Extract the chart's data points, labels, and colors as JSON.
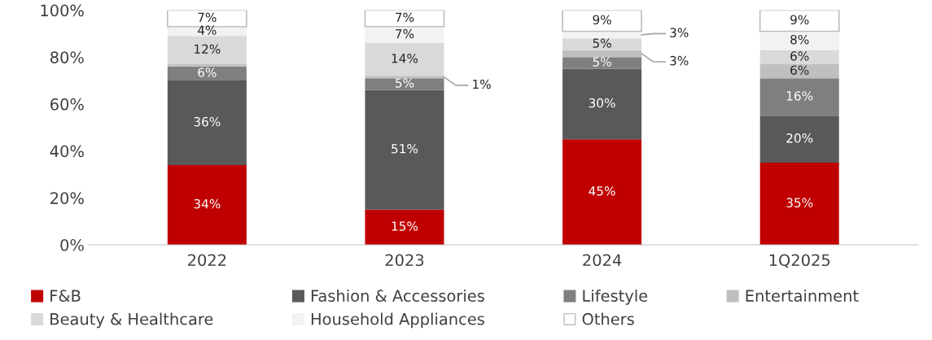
{
  "chart_data": {
    "type": "bar",
    "stacked": true,
    "categories": [
      "2022",
      "2023",
      "2024",
      "1Q2025"
    ],
    "series": [
      {
        "name": "F&B",
        "color": "#c00000",
        "values": [
          34,
          15,
          45,
          35
        ],
        "value_labels": [
          "34%",
          "15%",
          "45%",
          "35%"
        ]
      },
      {
        "name": "Fashion & Accessories",
        "color": "#595959",
        "values": [
          36,
          51,
          30,
          20
        ],
        "value_labels": [
          "36%",
          "51%",
          "30%",
          "20%"
        ]
      },
      {
        "name": "Lifestyle",
        "color": "#7f7f7f",
        "values": [
          6,
          5,
          5,
          16
        ],
        "value_labels": [
          "6%",
          "5%",
          "5%",
          "16%"
        ]
      },
      {
        "name": "Entertainment",
        "color": "#bfbfbf",
        "values": [
          1,
          1,
          3,
          6
        ],
        "value_labels": [
          null,
          "1%",
          "3%",
          "6%"
        ]
      },
      {
        "name": "Beauty & Healthcare",
        "color": "#d9d9d9",
        "values": [
          12,
          14,
          5,
          6
        ],
        "value_labels": [
          "12%",
          "14%",
          "5%",
          "6%"
        ]
      },
      {
        "name": "Household Appliances",
        "color": "#f2f2f2",
        "values": [
          4,
          7,
          3,
          8
        ],
        "value_labels": [
          "4%",
          "7%",
          "3%",
          "8%"
        ]
      },
      {
        "name": "Others",
        "color": "#ffffff",
        "values": [
          7,
          7,
          9,
          9
        ],
        "value_labels": [
          "7%",
          "7%",
          "9%",
          "9%"
        ]
      }
    ],
    "ylim": [
      0,
      100
    ],
    "yticks": [
      {
        "value": 0,
        "label": "0%"
      },
      {
        "value": 20,
        "label": "20%"
      },
      {
        "value": 40,
        "label": "40%"
      },
      {
        "value": 60,
        "label": "60%"
      },
      {
        "value": 80,
        "label": "80%"
      },
      {
        "value": 100,
        "label": "100%"
      }
    ],
    "grid": false,
    "legend": "bottom"
  }
}
